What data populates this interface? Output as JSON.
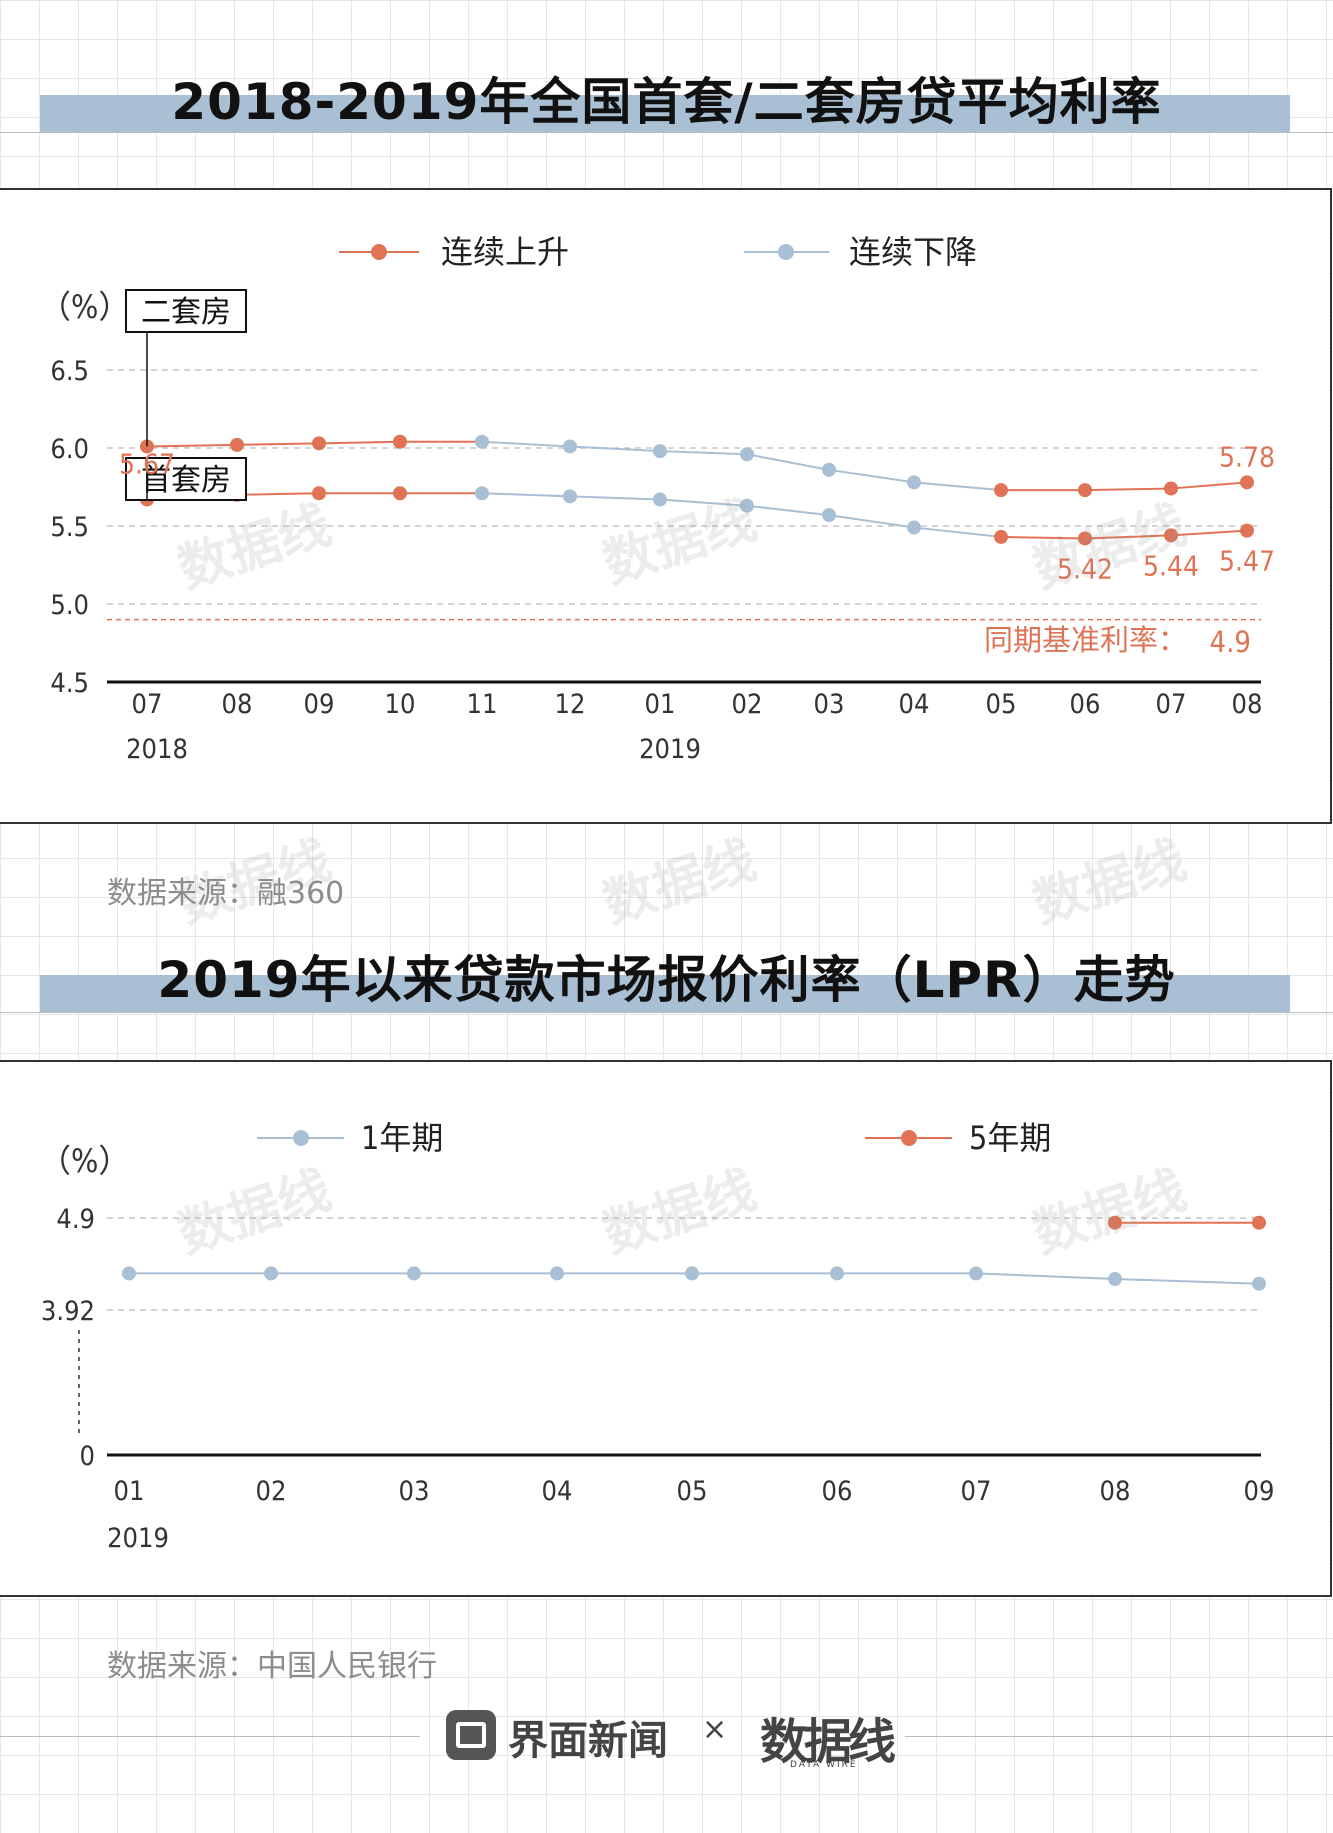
{
  "chart_data": [
    {
      "type": "line",
      "title": "2018-2019年全国首套/二套房贷平均利率",
      "unit_label": "（%）",
      "x_categories": [
        "07",
        "08",
        "09",
        "10",
        "11",
        "12",
        "01",
        "02",
        "03",
        "04",
        "05",
        "06",
        "07",
        "08"
      ],
      "year_labels": [
        {
          "category_index": 0,
          "text": "2018"
        },
        {
          "category_index": 6,
          "text": "2019"
        }
      ],
      "ylim": [
        4.5,
        6.5
      ],
      "y_ticks": [
        "6.5",
        "6.0",
        "5.5",
        "5.0",
        "4.5"
      ],
      "legend": [
        {
          "label": "连续上升",
          "color": "#e07356"
        },
        {
          "label": "连续下降",
          "color": "#a9bfd3"
        }
      ],
      "series": [
        {
          "name": "二套房",
          "values": [
            6.01,
            6.02,
            6.03,
            6.04,
            6.04,
            6.01,
            5.98,
            5.96,
            5.86,
            5.78,
            5.73,
            5.73,
            5.74,
            5.78
          ],
          "segments": [
            {
              "from": 0,
              "to": 4,
              "trend": "连续上升"
            },
            {
              "from": 4,
              "to": 10,
              "trend": "连续下降"
            },
            {
              "from": 10,
              "to": 13,
              "trend": "连续上升"
            }
          ],
          "data_labels": [
            {
              "index": 13,
              "text": "5.78"
            }
          ]
        },
        {
          "name": "首套房",
          "values": [
            5.67,
            5.7,
            5.71,
            5.71,
            5.71,
            5.69,
            5.67,
            5.63,
            5.57,
            5.49,
            5.43,
            5.42,
            5.44,
            5.47
          ],
          "segments": [
            {
              "from": 0,
              "to": 4,
              "trend": "连续上升"
            },
            {
              "from": 4,
              "to": 10,
              "trend": "连续下降"
            },
            {
              "from": 10,
              "to": 13,
              "trend": "连续上升"
            }
          ],
          "data_labels": [
            {
              "index": 0,
              "text": "5.67"
            },
            {
              "index": 11,
              "text": "5.42"
            },
            {
              "index": 12,
              "text": "5.44"
            },
            {
              "index": 13,
              "text": "5.47"
            }
          ]
        }
      ],
      "reference_line": {
        "value": 4.9,
        "label": "同期基准利率：",
        "value_text": "4.9",
        "color": "#e07356"
      },
      "source": "数据来源：融360"
    },
    {
      "type": "line",
      "title": "2019年以来贷款市场报价利率（LPR）走势",
      "unit_label": "（%）",
      "x_categories": [
        "01",
        "02",
        "03",
        "04",
        "05",
        "06",
        "07",
        "08",
        "09"
      ],
      "year_labels": [
        {
          "category_index": 0,
          "text": "2019"
        }
      ],
      "y_ticks": [
        {
          "label": "4.9",
          "value": 4.9
        },
        {
          "label": "3.92",
          "value": 3.92
        },
        {
          "label": "0",
          "value": 0
        }
      ],
      "axis_break": true,
      "legend": [
        {
          "label": "1年期",
          "color": "#a9bfd3"
        },
        {
          "label": "5年期",
          "color": "#e07356"
        }
      ],
      "series": [
        {
          "name": "1年期",
          "color": "#a9bfd3",
          "values": [
            4.31,
            4.31,
            4.31,
            4.31,
            4.31,
            4.31,
            4.31,
            4.25,
            4.2
          ]
        },
        {
          "name": "5年期",
          "color": "#e07356",
          "values": [
            null,
            null,
            null,
            null,
            null,
            null,
            null,
            4.85,
            4.85
          ]
        }
      ],
      "source": "数据来源：中国人民银行"
    }
  ],
  "footer": {
    "brand1": "界面新闻",
    "separator": "×",
    "brand2": "数据线",
    "brand2_sub": "DATA WIRE"
  },
  "watermark": "数据线"
}
